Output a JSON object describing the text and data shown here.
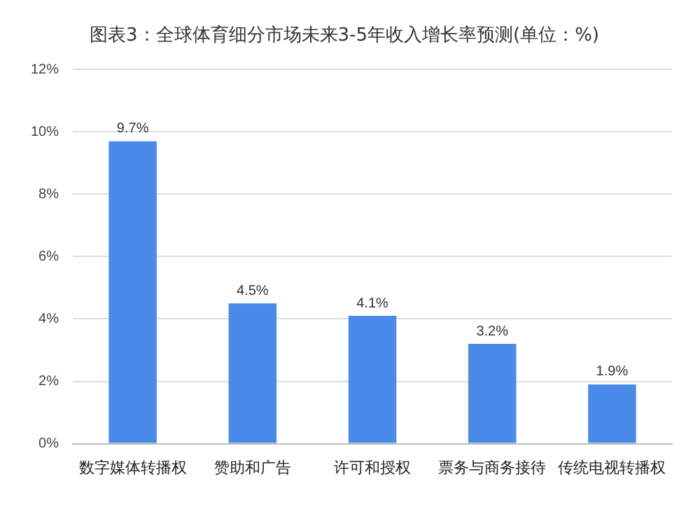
{
  "chart_data": {
    "type": "bar",
    "title": "图表3：全球体育细分市场未来3-5年收入增长率预测(单位：%)",
    "categories": [
      "数字媒体转播权",
      "赞助和广告",
      "许可和授权",
      "票务与商务接待",
      "传统电视转播权"
    ],
    "values": [
      9.7,
      4.5,
      4.1,
      3.2,
      1.9
    ],
    "value_labels": [
      "9.7%",
      "4.5%",
      "4.1%",
      "3.2%",
      "1.9%"
    ],
    "color": "#4a8ae8",
    "ylim": [
      0,
      12
    ],
    "yticks": [
      {
        "value": 0,
        "label": "0%"
      },
      {
        "value": 2,
        "label": "2%"
      },
      {
        "value": 4,
        "label": "4%"
      },
      {
        "value": 6,
        "label": "6%"
      },
      {
        "value": 8,
        "label": "8%"
      },
      {
        "value": 10,
        "label": "10%"
      },
      {
        "value": 12,
        "label": "12%"
      }
    ],
    "grid": "y"
  }
}
